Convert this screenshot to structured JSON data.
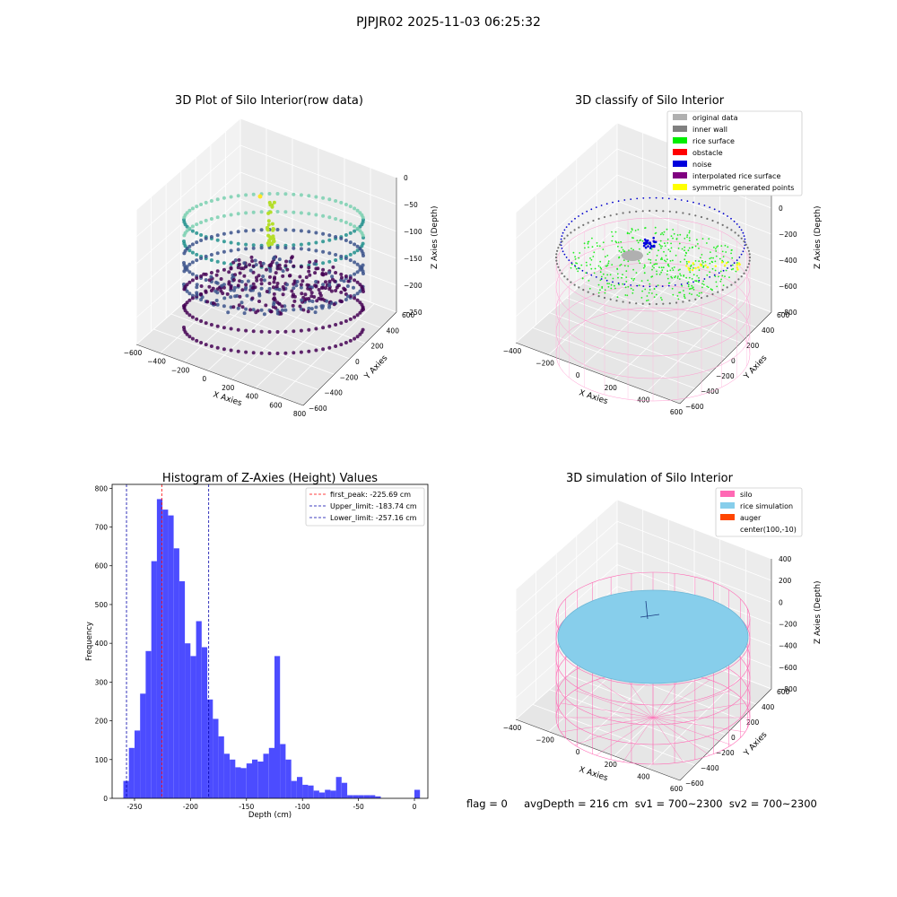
{
  "suptitle": "PJPJR02 2025-11-03 06:25:32",
  "status_line": "flag = 0     avgDepth = 216 cm  sv1 = 700~2300  sv2 = 700~2300",
  "chart_data": [
    {
      "type": "scatter",
      "projection": "3d",
      "title": "3D Plot of Silo Interior(row data)",
      "xlabel": "X Axies",
      "ylabel": "Y Axies",
      "zlabel": "Z Axies (Depth)",
      "x_ticks": [
        "−600",
        "−400",
        "−200",
        "0",
        "200",
        "400",
        "600",
        "800"
      ],
      "y_ticks": [
        "600",
        "400",
        "200",
        "0",
        "−200",
        "−400",
        "−600"
      ],
      "z_ticks": [
        "0",
        "−50",
        "−100",
        "−150",
        "−200",
        "−250"
      ],
      "colormap": "viridis"
    },
    {
      "type": "scatter",
      "projection": "3d",
      "title": "3D classify of Silo Interior",
      "xlabel": "X Axies",
      "ylabel": "Y Axies",
      "zlabel": "Z Axies (Depth)",
      "x_ticks": [
        "−400",
        "−200",
        "0",
        "200",
        "400",
        "600"
      ],
      "y_ticks": [
        "600",
        "400",
        "200",
        "0",
        "−200",
        "−400",
        "−600"
      ],
      "z_ticks": [
        "200",
        "0",
        "−200",
        "−400",
        "−600",
        "−800"
      ],
      "legend": [
        {
          "label": "original data",
          "color": "#b0b0b0"
        },
        {
          "label": "inner wall",
          "color": "#808080"
        },
        {
          "label": "rice surface",
          "color": "#00ee00"
        },
        {
          "label": "obstacle",
          "color": "#ff0000"
        },
        {
          "label": "noise",
          "color": "#0000dd"
        },
        {
          "label": "interpolated rice surface",
          "color": "#800080"
        },
        {
          "label": "symmetric generated points",
          "color": "#ffff00"
        }
      ],
      "legend_position": "top-right"
    },
    {
      "type": "bar",
      "title": "Histogram of Z-Axies (Height) Values",
      "xlabel": "Depth (cm)",
      "ylabel": "Frequency",
      "bin_width": 5,
      "x": [
        -260,
        -255,
        -250,
        -245,
        -240,
        -235,
        -230,
        -225,
        -220,
        -215,
        -210,
        -205,
        -200,
        -195,
        -190,
        -185,
        -180,
        -175,
        -170,
        -165,
        -160,
        -155,
        -150,
        -145,
        -140,
        -135,
        -130,
        -125,
        -120,
        -115,
        -110,
        -105,
        -100,
        -95,
        -90,
        -85,
        -80,
        -75,
        -70,
        -65,
        -60,
        -55,
        -50,
        -45,
        -40,
        -35,
        -30,
        -25,
        -20,
        -15,
        -10,
        -5,
        0
      ],
      "values": [
        45,
        130,
        175,
        270,
        380,
        612,
        772,
        745,
        730,
        645,
        560,
        400,
        367,
        457,
        390,
        255,
        205,
        160,
        115,
        100,
        80,
        78,
        90,
        100,
        95,
        115,
        130,
        367,
        140,
        100,
        45,
        55,
        35,
        33,
        20,
        15,
        22,
        20,
        55,
        40,
        8,
        8,
        8,
        8,
        8,
        5,
        0,
        0,
        0,
        0,
        0,
        0,
        22
      ],
      "xlim": [
        -270,
        12
      ],
      "ylim": [
        0,
        810
      ],
      "x_ticks": [
        -250,
        -200,
        -150,
        -100,
        -50,
        0
      ],
      "y_ticks": [
        0,
        100,
        200,
        300,
        400,
        500,
        600,
        700,
        800
      ],
      "bar_color": "#0000ff",
      "vlines": [
        {
          "x": -225.69,
          "label": "first_peak: -225.69 cm",
          "color": "#ff0000"
        },
        {
          "x": -183.74,
          "label": "Upper_limit: -183.74 cm",
          "color": "#0000aa"
        },
        {
          "x": -257.16,
          "label": "Lower_limit: -257.16 cm",
          "color": "#0000aa"
        }
      ],
      "legend_position": "top-right"
    },
    {
      "type": "scatter",
      "projection": "3d",
      "title": "3D simulation of Silo Interior",
      "xlabel": "X Axies",
      "ylabel": "Y Axies",
      "zlabel": "Z Axies (Depth)",
      "x_ticks": [
        "−400",
        "−200",
        "0",
        "200",
        "400",
        "600"
      ],
      "y_ticks": [
        "600",
        "400",
        "200",
        "0",
        "−200",
        "−400",
        "−600"
      ],
      "z_ticks": [
        "400",
        "200",
        "0",
        "−200",
        "−400",
        "−600",
        "−800"
      ],
      "legend": [
        {
          "label": "silo",
          "color": "#ff69b4"
        },
        {
          "label": "rice simulation",
          "color": "#87ceeb"
        },
        {
          "label": "auger",
          "color": "#ff4500"
        },
        {
          "label": "center(100,-10)",
          "color": "none"
        }
      ],
      "legend_position": "top-right"
    }
  ]
}
